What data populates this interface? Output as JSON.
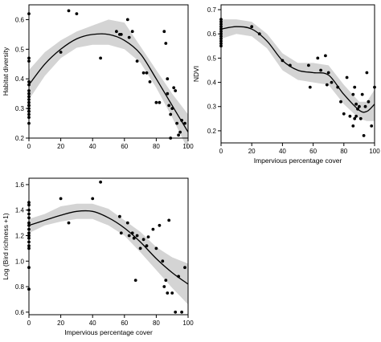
{
  "chart_data": [
    {
      "type": "scatter",
      "xlabel": "",
      "ylabel": "Habitat diversity",
      "xlim": [
        0,
        100
      ],
      "ylim": [
        0.2,
        0.65
      ],
      "xticks": [
        0,
        20,
        40,
        60,
        80,
        100
      ],
      "yticks": [
        0.2,
        0.3,
        0.4,
        0.5,
        0.6
      ],
      "points": {
        "x": [
          0,
          0,
          0,
          0,
          0,
          0,
          0,
          0,
          0,
          0,
          0,
          0,
          0,
          0,
          0,
          0,
          0,
          0,
          20,
          25,
          30,
          45,
          55,
          57,
          58,
          62,
          63,
          65,
          68,
          72,
          74,
          76,
          80,
          82,
          85,
          86,
          87,
          87,
          88,
          89,
          89,
          90,
          91,
          92,
          93,
          94,
          95,
          96,
          98
        ],
        "y": [
          0.62,
          0.47,
          0.46,
          0.39,
          0.38,
          0.35,
          0.34,
          0.33,
          0.31,
          0.3,
          0.29,
          0.28,
          0.27,
          0.32,
          0.25,
          0.29,
          0.31,
          0.36,
          0.49,
          0.63,
          0.62,
          0.47,
          0.56,
          0.55,
          0.55,
          0.6,
          0.54,
          0.56,
          0.46,
          0.42,
          0.42,
          0.39,
          0.32,
          0.32,
          0.56,
          0.52,
          0.4,
          0.35,
          0.31,
          0.2,
          0.28,
          0.3,
          0.37,
          0.36,
          0.25,
          0.21,
          0.22,
          0.26,
          0.25
        ]
      },
      "fit": {
        "x": [
          0,
          10,
          20,
          30,
          40,
          50,
          60,
          70,
          80,
          90,
          100
        ],
        "y": [
          0.38,
          0.45,
          0.5,
          0.535,
          0.55,
          0.55,
          0.53,
          0.485,
          0.4,
          0.31,
          0.22
        ],
        "lower": [
          0.33,
          0.41,
          0.47,
          0.505,
          0.515,
          0.515,
          0.5,
          0.455,
          0.37,
          0.27,
          0.16
        ],
        "upper": [
          0.43,
          0.49,
          0.53,
          0.56,
          0.58,
          0.6,
          0.59,
          0.51,
          0.43,
          0.35,
          0.28
        ]
      }
    },
    {
      "type": "scatter",
      "xlabel": "Impervious percentage cover",
      "ylabel": "NDVI",
      "xlim": [
        0,
        100
      ],
      "ylim": [
        0.15,
        0.72
      ],
      "xticks": [
        0,
        20,
        40,
        60,
        80,
        100
      ],
      "yticks": [
        0.2,
        0.3,
        0.4,
        0.5,
        0.6,
        0.7
      ],
      "points": {
        "x": [
          0,
          0,
          0,
          0,
          0,
          0,
          0,
          0,
          0,
          0,
          0,
          0,
          20,
          25,
          40,
          45,
          57,
          58,
          63,
          65,
          68,
          69,
          70,
          72,
          76,
          78,
          80,
          82,
          84,
          86,
          86,
          87,
          87,
          88,
          88,
          89,
          90,
          91,
          92,
          93,
          94,
          95,
          96,
          98,
          100
        ],
        "y": [
          0.66,
          0.65,
          0.64,
          0.63,
          0.62,
          0.61,
          0.6,
          0.59,
          0.58,
          0.57,
          0.56,
          0.55,
          0.63,
          0.6,
          0.49,
          0.47,
          0.47,
          0.38,
          0.5,
          0.45,
          0.51,
          0.39,
          0.44,
          0.4,
          0.38,
          0.32,
          0.27,
          0.42,
          0.26,
          0.35,
          0.22,
          0.38,
          0.25,
          0.31,
          0.26,
          0.29,
          0.3,
          0.25,
          0.35,
          0.18,
          0.3,
          0.44,
          0.32,
          0.22,
          0.38
        ]
      },
      "fit": {
        "x": [
          0,
          10,
          20,
          30,
          40,
          50,
          60,
          70,
          80,
          90,
          95,
          100
        ],
        "y": [
          0.62,
          0.63,
          0.62,
          0.57,
          0.49,
          0.45,
          0.44,
          0.43,
          0.35,
          0.285,
          0.28,
          0.31
        ],
        "lower": [
          0.58,
          0.6,
          0.59,
          0.54,
          0.45,
          0.41,
          0.4,
          0.39,
          0.31,
          0.25,
          0.24,
          0.24
        ],
        "upper": [
          0.66,
          0.66,
          0.65,
          0.6,
          0.52,
          0.48,
          0.48,
          0.47,
          0.39,
          0.32,
          0.32,
          0.37
        ]
      }
    },
    {
      "type": "scatter",
      "xlabel": "Impervious percentage cover",
      "ylabel": "Log (Bird richness +1)",
      "xlim": [
        0,
        100
      ],
      "ylim": [
        0.58,
        1.65
      ],
      "xticks": [
        0,
        20,
        40,
        60,
        80,
        100
      ],
      "yticks": [
        0.6,
        0.8,
        1.0,
        1.2,
        1.4,
        1.6
      ],
      "points": {
        "x": [
          0,
          0,
          0,
          0,
          0,
          0,
          0,
          0,
          0,
          0,
          0,
          0,
          0,
          0,
          0,
          0,
          20,
          25,
          40,
          45,
          57,
          58,
          62,
          63,
          65,
          66,
          67,
          68,
          70,
          72,
          74,
          75,
          78,
          80,
          82,
          84,
          85,
          86,
          87,
          88,
          90,
          92,
          94,
          96,
          98
        ],
        "y": [
          1.46,
          1.44,
          1.4,
          1.37,
          1.34,
          1.3,
          1.28,
          1.25,
          1.22,
          1.2,
          1.18,
          1.15,
          1.12,
          0.95,
          0.78,
          1.1,
          1.49,
          1.3,
          1.49,
          1.62,
          1.35,
          1.22,
          1.3,
          1.2,
          1.22,
          1.18,
          0.85,
          1.2,
          1.1,
          1.17,
          1.12,
          1.19,
          1.25,
          1.1,
          1.28,
          1.0,
          0.8,
          0.85,
          0.75,
          1.32,
          0.75,
          0.6,
          0.88,
          0.6,
          0.95
        ]
      },
      "fit": {
        "x": [
          0,
          10,
          20,
          30,
          40,
          50,
          60,
          70,
          80,
          90,
          100
        ],
        "y": [
          1.28,
          1.32,
          1.36,
          1.39,
          1.39,
          1.34,
          1.26,
          1.15,
          1.02,
          0.91,
          0.82
        ],
        "lower": [
          1.22,
          1.28,
          1.31,
          1.33,
          1.33,
          1.28,
          1.2,
          1.07,
          0.93,
          0.79,
          0.66
        ],
        "upper": [
          1.33,
          1.37,
          1.43,
          1.45,
          1.45,
          1.41,
          1.32,
          1.23,
          1.11,
          1.03,
          0.98
        ]
      }
    }
  ]
}
